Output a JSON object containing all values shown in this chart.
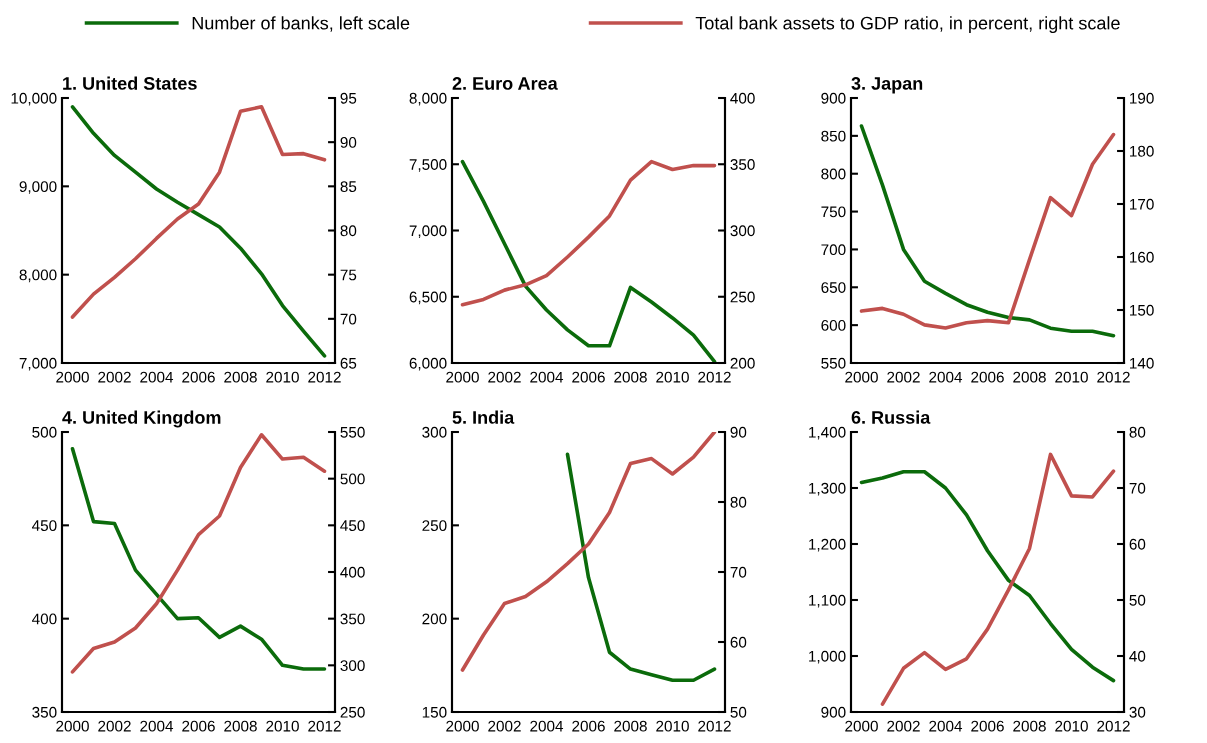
{
  "chart_data": [
    {
      "type": "line",
      "title": "1. United States",
      "legend": "top",
      "categories": [
        "2000",
        null,
        "2002",
        null,
        "2004",
        null,
        "2006",
        null,
        "2008",
        null,
        "2010",
        null,
        "2012"
      ],
      "series": [
        {
          "name": "Number of banks, left scale",
          "color": "#0b6b0b",
          "values": [
            9900,
            9600,
            9350,
            9160,
            8970,
            8820,
            8680,
            8540,
            8300,
            8010,
            7650,
            7360,
            7080
          ]
        },
        {
          "name": "Total bank assets to GDP ratio, in percent, right scale",
          "color": "#c0504d",
          "axis": "y2",
          "values": [
            70.2,
            72.8,
            74.7,
            76.8,
            79.1,
            81.3,
            83.0,
            86.6,
            93.5,
            94.0,
            88.6,
            88.7,
            88.0
          ]
        }
      ],
      "ylim": [
        7000,
        10000
      ],
      "yticks": [
        {
          "value": 7000,
          "label": "7,000"
        },
        {
          "value": 8000,
          "label": "8,000"
        },
        {
          "value": 9000,
          "label": "9,000"
        },
        {
          "value": 10000,
          "label": "10,000"
        }
      ],
      "y2lim": [
        65,
        95
      ],
      "y2ticks": [
        65,
        70,
        75,
        80,
        85,
        90,
        95
      ]
    },
    {
      "type": "line",
      "title": "2. Euro Area",
      "categories": [
        "2000",
        null,
        "2002",
        null,
        "2004",
        null,
        "2006",
        null,
        "2008",
        null,
        "2010",
        null,
        "2012"
      ],
      "series": [
        {
          "color": "#0b6b0b",
          "values": [
            7520,
            7220,
            6900,
            6580,
            6400,
            6250,
            6130,
            6130,
            6570,
            6460,
            6340,
            6210,
            6010
          ]
        },
        {
          "color": "#c0504d",
          "axis": "y2",
          "values": [
            244,
            248,
            255,
            259,
            266,
            280,
            295,
            311,
            338,
            352,
            346,
            349,
            349
          ]
        }
      ],
      "ylim": [
        6000,
        8000
      ],
      "yticks": [
        {
          "value": 6000,
          "label": "6,000"
        },
        {
          "value": 6500,
          "label": "6,500"
        },
        {
          "value": 7000,
          "label": "7,000"
        },
        {
          "value": 7500,
          "label": "7,500"
        },
        {
          "value": 8000,
          "label": "8,000"
        }
      ],
      "y2lim": [
        200,
        400
      ],
      "y2ticks": [
        200,
        250,
        300,
        350,
        400
      ]
    },
    {
      "type": "line",
      "title": "3. Japan",
      "categories": [
        "2000",
        null,
        "2002",
        null,
        "2004",
        null,
        "2006",
        null,
        "2008",
        null,
        "2010",
        null,
        "2012"
      ],
      "series": [
        {
          "color": "#0b6b0b",
          "values": [
            863,
            785,
            700,
            658,
            642,
            627,
            617,
            610,
            607,
            596,
            592,
            592,
            586
          ]
        },
        {
          "color": "#c0504d",
          "axis": "y2",
          "values": [
            149.8,
            150.3,
            149.2,
            147.2,
            146.6,
            147.6,
            148.0,
            147.6,
            159.5,
            171.2,
            167.8,
            177.5,
            183.1
          ]
        }
      ],
      "ylim": [
        550,
        900
      ],
      "yticks": [
        550,
        600,
        650,
        700,
        750,
        800,
        850,
        900
      ],
      "y2lim": [
        140,
        190
      ],
      "y2ticks": [
        140,
        150,
        160,
        170,
        180,
        190
      ]
    },
    {
      "type": "line",
      "title": "4. United Kingdom",
      "categories": [
        "2000",
        null,
        "2002",
        null,
        "2004",
        null,
        "2006",
        null,
        "2008",
        null,
        "2010",
        null,
        "2012"
      ],
      "series": [
        {
          "color": "#0b6b0b",
          "values": [
            491,
            452,
            451,
            426,
            413,
            400,
            400.5,
            390,
            396,
            389,
            375,
            373,
            373
          ]
        },
        {
          "color": "#c0504d",
          "axis": "y2",
          "values": [
            293,
            318,
            325,
            340,
            366,
            402,
            440,
            460,
            512,
            547,
            521,
            523,
            508
          ]
        }
      ],
      "ylim": [
        350,
        500
      ],
      "yticks": [
        350,
        400,
        450,
        500
      ],
      "y2lim": [
        250,
        550
      ],
      "y2ticks": [
        250,
        300,
        350,
        400,
        450,
        500,
        550
      ]
    },
    {
      "type": "line",
      "title": "5. India",
      "categories": [
        "2000",
        null,
        "2002",
        null,
        "2004",
        null,
        "2006",
        null,
        "2008",
        null,
        "2010",
        null,
        "2012"
      ],
      "series": [
        {
          "color": "#0b6b0b",
          "values": [
            null,
            null,
            null,
            null,
            null,
            288,
            222,
            182,
            173,
            170,
            167,
            167,
            173
          ]
        },
        {
          "color": "#c0504d",
          "axis": "y2",
          "values": [
            56,
            61,
            65.5,
            66.5,
            68.6,
            71.2,
            74,
            78.5,
            85.5,
            86.2,
            84,
            86.4,
            90
          ]
        }
      ],
      "ylim": [
        150,
        300
      ],
      "yticks": [
        150,
        200,
        250,
        300
      ],
      "y2lim": [
        50,
        90
      ],
      "y2ticks": [
        50,
        60,
        70,
        80,
        90
      ]
    },
    {
      "type": "line",
      "title": "6. Russia",
      "categories": [
        "2000",
        null,
        "2002",
        null,
        "2004",
        null,
        "2006",
        null,
        "2008",
        null,
        "2010",
        null,
        "2012"
      ],
      "series": [
        {
          "color": "#0b6b0b",
          "values": [
            1310,
            1318,
            1329,
            1329,
            1300,
            1252,
            1188,
            1135,
            1108,
            1058,
            1012,
            980,
            956
          ]
        },
        {
          "color": "#c0504d",
          "axis": "y2",
          "values": [
            null,
            31.4,
            37.8,
            40.6,
            37.6,
            39.5,
            44.8,
            51.8,
            59.2,
            76,
            68.6,
            68.4,
            73
          ]
        }
      ],
      "ylim": [
        900,
        1400
      ],
      "yticks": [
        900,
        {
          "value": 1000,
          "label": "1,000"
        },
        {
          "value": 1100,
          "label": "1,100"
        },
        {
          "value": 1200,
          "label": "1,200"
        },
        {
          "value": 1300,
          "label": "1,300"
        },
        {
          "value": 1400,
          "label": "1,400"
        }
      ],
      "y2lim": [
        30,
        80
      ],
      "y2ticks": [
        30,
        40,
        50,
        60,
        70,
        80
      ]
    }
  ]
}
